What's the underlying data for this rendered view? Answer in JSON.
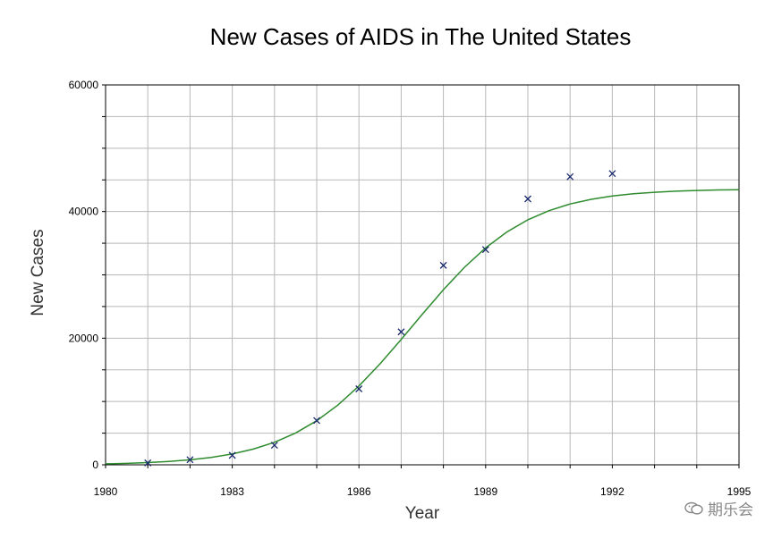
{
  "chart_data": {
    "type": "scatter",
    "title": "New Cases of AIDS in The United States",
    "xlabel": "Year",
    "ylabel": "New Cases",
    "xlim": [
      1980,
      1995
    ],
    "ylim": [
      0,
      60000
    ],
    "x_ticks": [
      1980,
      1983,
      1986,
      1989,
      1992,
      1995
    ],
    "y_ticks": [
      0,
      20000,
      40000,
      60000
    ],
    "grid": true,
    "series": [
      {
        "kind": "points",
        "marker": "x",
        "color": "#1a2a6e",
        "x": [
          1981,
          1982,
          1983,
          1984,
          1985,
          1986,
          1987,
          1988,
          1989,
          1990,
          1991,
          1992
        ],
        "y": [
          300,
          800,
          1500,
          3100,
          7000,
          12000,
          21000,
          31500,
          34000,
          42000,
          45500,
          46000
        ]
      },
      {
        "kind": "fitted-curve",
        "color": "#2e8b2e",
        "x": [
          1980,
          1980.5,
          1981,
          1981.5,
          1982,
          1982.5,
          1983,
          1983.5,
          1984,
          1984.5,
          1985,
          1985.5,
          1986,
          1986.5,
          1987,
          1987.5,
          1988,
          1988.5,
          1989,
          1989.5,
          1990,
          1990.5,
          1991,
          1991.5,
          1992,
          1992.5,
          1993,
          1993.5,
          1994,
          1994.5,
          1995
        ],
        "y": [
          150,
          230,
          350,
          530,
          790,
          1170,
          1710,
          2480,
          3560,
          5020,
          6960,
          9430,
          12450,
          15950,
          19790,
          23770,
          27650,
          31200,
          34260,
          36760,
          38700,
          40140,
          41190,
          41930,
          42450,
          42810,
          43050,
          43220,
          43330,
          43410,
          43460
        ]
      }
    ]
  },
  "watermark": {
    "text": "期乐会",
    "icon": "wechat-icon"
  }
}
